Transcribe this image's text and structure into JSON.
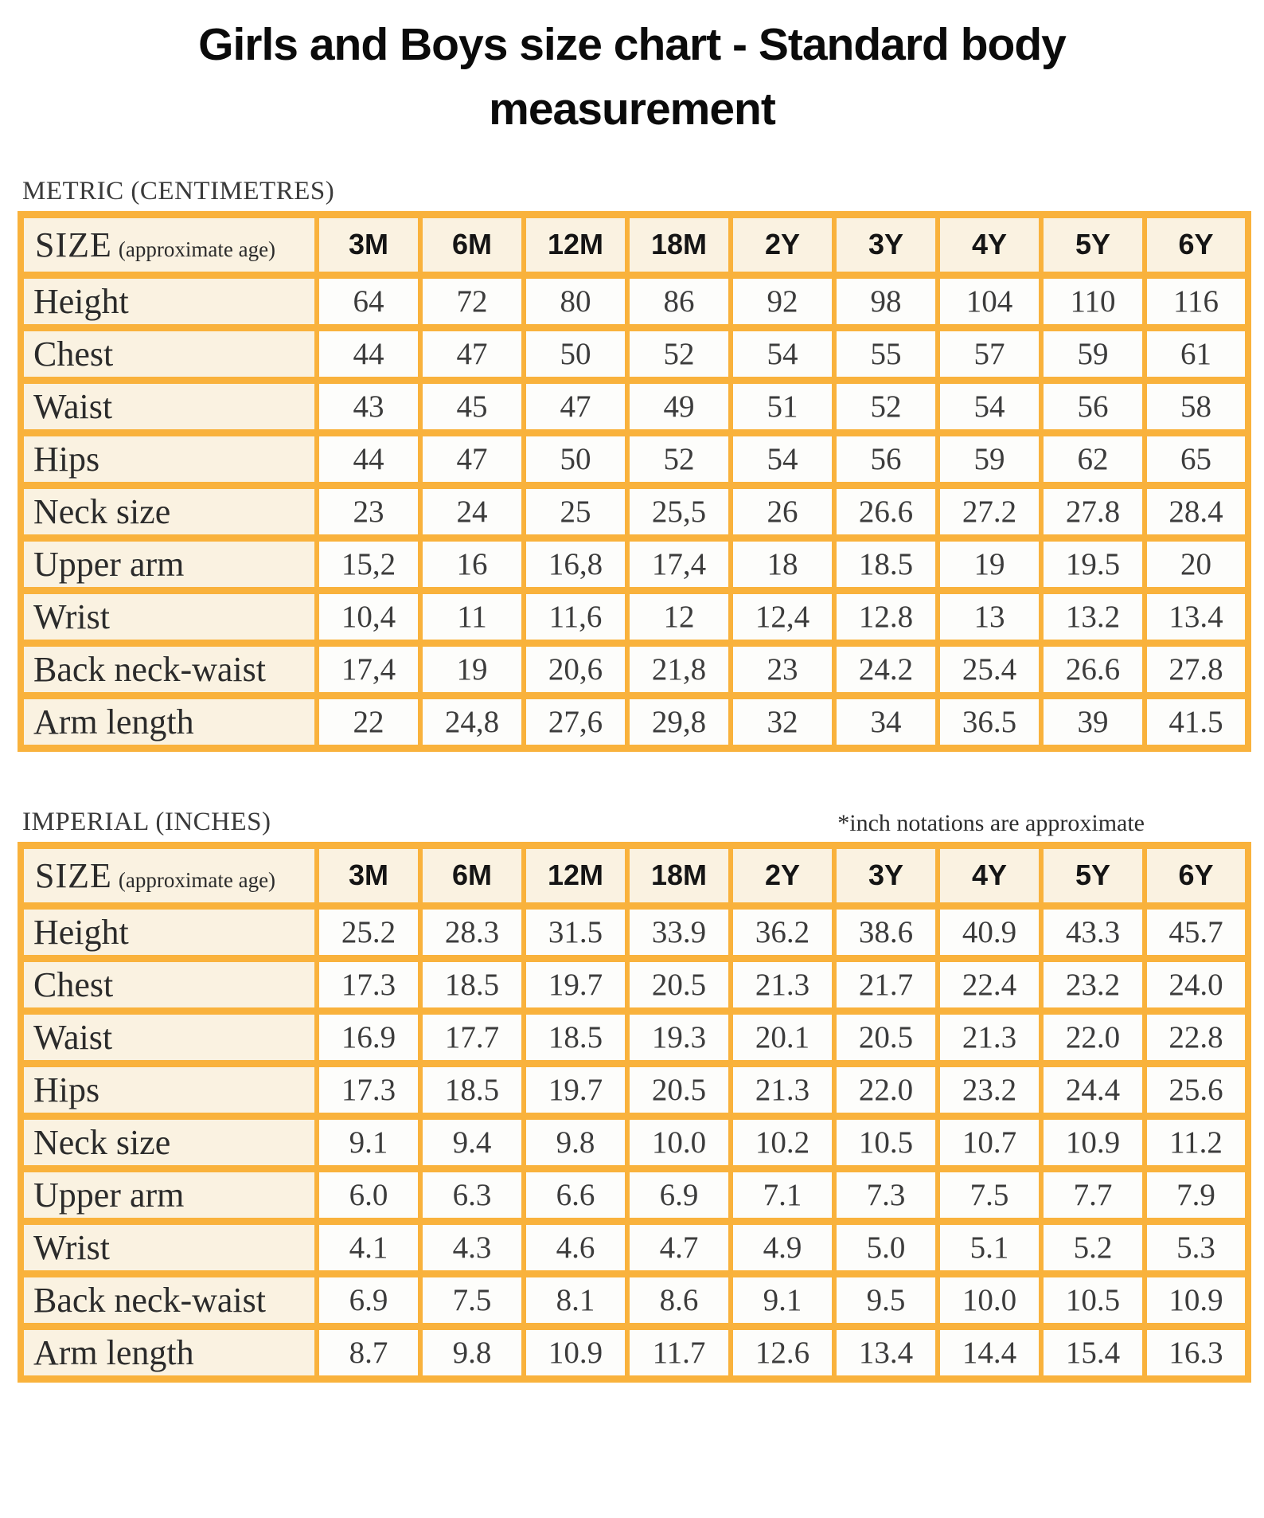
{
  "title": {
    "line1": "Girls and Boys size chart - Standard body",
    "line2": "measurement"
  },
  "size_label": "SIZE",
  "size_sublabel": "(approximate age)",
  "columns": [
    "3M",
    "6M",
    "12M",
    "18M",
    "2Y",
    "3Y",
    "4Y",
    "5Y",
    "6Y"
  ],
  "tables": [
    {
      "id": "metric",
      "section_label": "METRIC (CENTIMETRES)",
      "note": "",
      "rows": [
        {
          "label": "Height",
          "values": [
            "64",
            "72",
            "80",
            "86",
            "92",
            "98",
            "104",
            "110",
            "116"
          ]
        },
        {
          "label": "Chest",
          "values": [
            "44",
            "47",
            "50",
            "52",
            "54",
            "55",
            "57",
            "59",
            "61"
          ]
        },
        {
          "label": "Waist",
          "values": [
            "43",
            "45",
            "47",
            "49",
            "51",
            "52",
            "54",
            "56",
            "58"
          ]
        },
        {
          "label": "Hips",
          "values": [
            "44",
            "47",
            "50",
            "52",
            "54",
            "56",
            "59",
            "62",
            "65"
          ]
        },
        {
          "label": "Neck size",
          "values": [
            "23",
            "24",
            "25",
            "25,5",
            "26",
            "26.6",
            "27.2",
            "27.8",
            "28.4"
          ]
        },
        {
          "label": "Upper arm",
          "values": [
            "15,2",
            "16",
            "16,8",
            "17,4",
            "18",
            "18.5",
            "19",
            "19.5",
            "20"
          ]
        },
        {
          "label": "Wrist",
          "values": [
            "10,4",
            "11",
            "11,6",
            "12",
            "12,4",
            "12.8",
            "13",
            "13.2",
            "13.4"
          ]
        },
        {
          "label": "Back neck-waist",
          "values": [
            "17,4",
            "19",
            "20,6",
            "21,8",
            "23",
            "24.2",
            "25.4",
            "26.6",
            "27.8"
          ]
        },
        {
          "label": "Arm length",
          "values": [
            "22",
            "24,8",
            "27,6",
            "29,8",
            "32",
            "34",
            "36.5",
            "39",
            "41.5"
          ]
        }
      ]
    },
    {
      "id": "imperial",
      "section_label": "IMPERIAL (INCHES)",
      "note": "*inch notations are approximate",
      "rows": [
        {
          "label": "Height",
          "values": [
            "25.2",
            "28.3",
            "31.5",
            "33.9",
            "36.2",
            "38.6",
            "40.9",
            "43.3",
            "45.7"
          ]
        },
        {
          "label": "Chest",
          "values": [
            "17.3",
            "18.5",
            "19.7",
            "20.5",
            "21.3",
            "21.7",
            "22.4",
            "23.2",
            "24.0"
          ]
        },
        {
          "label": "Waist",
          "values": [
            "16.9",
            "17.7",
            "18.5",
            "19.3",
            "20.1",
            "20.5",
            "21.3",
            "22.0",
            "22.8"
          ]
        },
        {
          "label": "Hips",
          "values": [
            "17.3",
            "18.5",
            "19.7",
            "20.5",
            "21.3",
            "22.0",
            "23.2",
            "24.4",
            "25.6"
          ]
        },
        {
          "label": "Neck size",
          "values": [
            "9.1",
            "9.4",
            "9.8",
            "10.0",
            "10.2",
            "10.5",
            "10.7",
            "10.9",
            "11.2"
          ]
        },
        {
          "label": "Upper arm",
          "values": [
            "6.0",
            "6.3",
            "6.6",
            "6.9",
            "7.1",
            "7.3",
            "7.5",
            "7.7",
            "7.9"
          ]
        },
        {
          "label": "Wrist",
          "values": [
            "4.1",
            "4.3",
            "4.6",
            "4.7",
            "4.9",
            "5.0",
            "5.1",
            "5.2",
            "5.3"
          ]
        },
        {
          "label": "Back neck-waist",
          "values": [
            "6.9",
            "7.5",
            "8.1",
            "8.6",
            "9.1",
            "9.5",
            "10.0",
            "10.5",
            "10.9"
          ]
        },
        {
          "label": "Arm length",
          "values": [
            "8.7",
            "9.8",
            "10.9",
            "11.7",
            "12.6",
            "13.4",
            "14.4",
            "15.4",
            "16.3"
          ]
        }
      ]
    }
  ],
  "colors": {
    "border": "#f9b23c",
    "head_bg": "#faf2e1",
    "cell_bg": "#fdfdfb",
    "page_bg": "#ffffff"
  }
}
